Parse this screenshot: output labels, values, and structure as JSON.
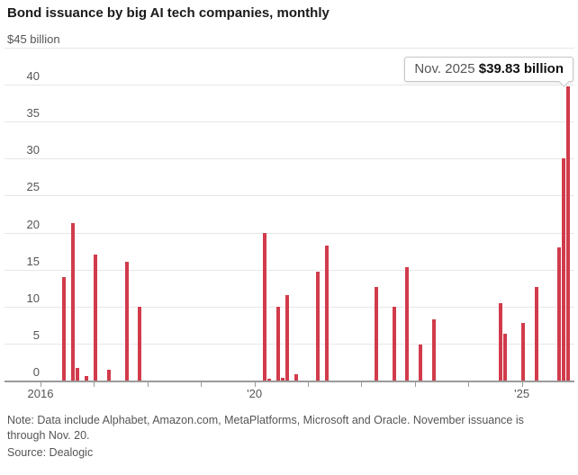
{
  "header": {
    "title": "Bond issuance by big AI tech companies, monthly"
  },
  "chart_data": {
    "type": "bar",
    "title": "Bond issuance by big AI tech companies, monthly",
    "unit_label": "$45 billion",
    "ylim": [
      0,
      45
    ],
    "y_ticks": [
      0,
      5,
      10,
      15,
      20,
      25,
      30,
      35,
      40,
      45
    ],
    "grid": "horizontal",
    "bar_color": "#d13b4b",
    "x_range": {
      "start": "2016-01",
      "end": "2025-12"
    },
    "x_ticks": [
      {
        "year": 2016,
        "label": "2016"
      },
      {
        "year": 2017,
        "label": ""
      },
      {
        "year": 2018,
        "label": ""
      },
      {
        "year": 2019,
        "label": ""
      },
      {
        "year": 2020,
        "label": "'20"
      },
      {
        "year": 2021,
        "label": ""
      },
      {
        "year": 2022,
        "label": ""
      },
      {
        "year": 2023,
        "label": ""
      },
      {
        "year": 2024,
        "label": ""
      },
      {
        "year": 2025,
        "label": "'25"
      }
    ],
    "points": [
      {
        "month": "2016-06",
        "value": 14.0
      },
      {
        "month": "2016-08",
        "value": 21.3
      },
      {
        "month": "2016-09",
        "value": 1.7
      },
      {
        "month": "2016-11",
        "value": 0.6
      },
      {
        "month": "2017-01",
        "value": 17.0
      },
      {
        "month": "2017-04",
        "value": 1.5
      },
      {
        "month": "2017-08",
        "value": 16.0
      },
      {
        "month": "2017-11",
        "value": 10.0
      },
      {
        "month": "2020-03",
        "value": 20.0
      },
      {
        "month": "2020-04",
        "value": 0.3
      },
      {
        "month": "2020-06",
        "value": 10.0
      },
      {
        "month": "2020-07",
        "value": 0.4
      },
      {
        "month": "2020-08",
        "value": 11.6
      },
      {
        "month": "2020-10",
        "value": 0.9
      },
      {
        "month": "2021-03",
        "value": 14.7
      },
      {
        "month": "2021-05",
        "value": 18.3
      },
      {
        "month": "2022-04",
        "value": 12.7
      },
      {
        "month": "2022-08",
        "value": 10.0
      },
      {
        "month": "2022-11",
        "value": 15.3
      },
      {
        "month": "2023-02",
        "value": 4.9
      },
      {
        "month": "2023-05",
        "value": 8.3
      },
      {
        "month": "2024-08",
        "value": 10.5
      },
      {
        "month": "2024-09",
        "value": 6.3
      },
      {
        "month": "2025-01",
        "value": 7.8
      },
      {
        "month": "2025-04",
        "value": 12.6
      },
      {
        "month": "2025-09",
        "value": 18.0
      },
      {
        "month": "2025-10",
        "value": 30.0
      },
      {
        "month": "2025-11",
        "value": 39.83
      }
    ],
    "annotation": {
      "month": "2025-11",
      "label": "Nov. 2025",
      "value": "$39.83 billion"
    },
    "legend": "none"
  },
  "footer": {
    "note": "Note: Data include Alphabet, Amazon.com, MetaPlatforms, Microsoft and Oracle. November issuance is through Nov. 20.",
    "source": "Source: Dealogic"
  }
}
